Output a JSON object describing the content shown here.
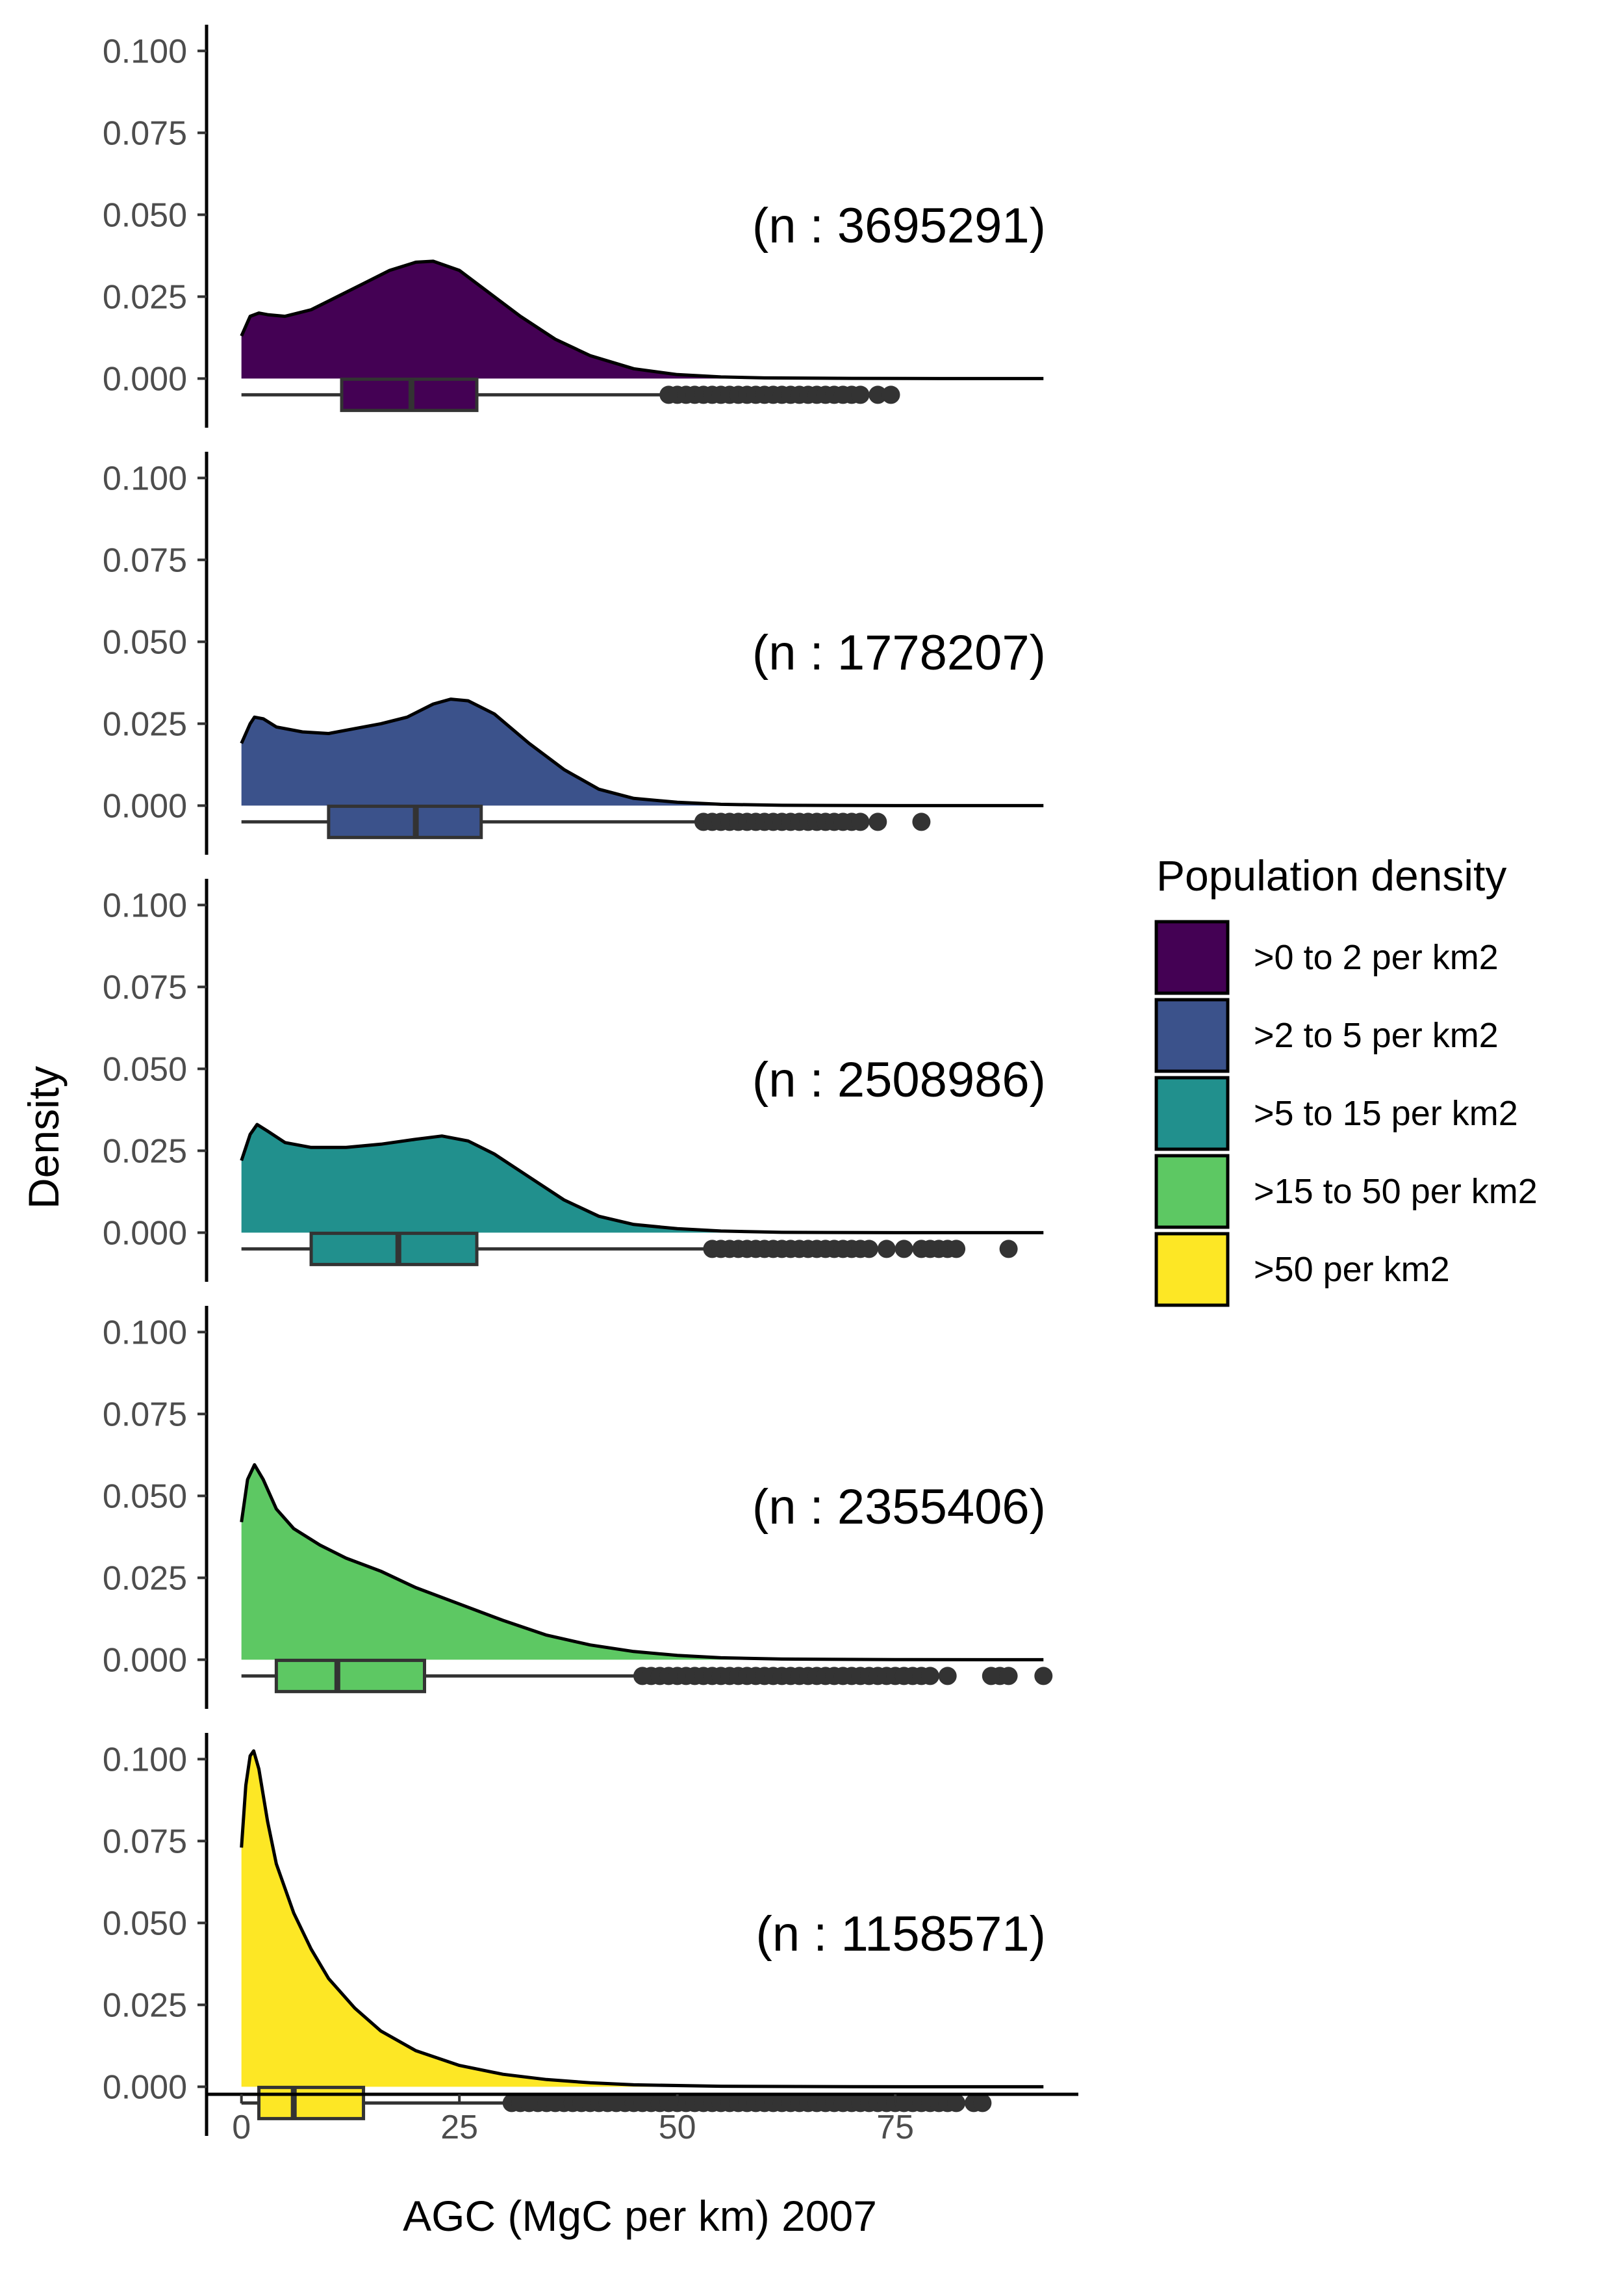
{
  "chart_data": {
    "type": "density_ridgeline",
    "xlabel": "AGC (MgC per km) 2007",
    "ylabel": "Density",
    "x_ticks": [
      0,
      25,
      50,
      75
    ],
    "xlim": [
      -4,
      96
    ],
    "y_ticks": [
      0.0,
      0.025,
      0.05,
      0.075,
      0.1
    ],
    "y_tick_labels": [
      "0.000",
      "0.025",
      "0.050",
      "0.075",
      "0.100"
    ],
    "ylim": [
      -0.015,
      0.108
    ],
    "legend": {
      "title": "Population density",
      "placement": "right"
    },
    "series": [
      {
        "name": ">0 to 2 per km2",
        "color": "#440154",
        "n_label": "(n : 3695291)",
        "density": [
          [
            0,
            0.013
          ],
          [
            1,
            0.019
          ],
          [
            2,
            0.02
          ],
          [
            3,
            0.0195
          ],
          [
            5,
            0.019
          ],
          [
            8,
            0.021
          ],
          [
            11,
            0.025
          ],
          [
            14,
            0.029
          ],
          [
            17,
            0.033
          ],
          [
            20,
            0.0355
          ],
          [
            22,
            0.0358
          ],
          [
            25,
            0.033
          ],
          [
            28,
            0.027
          ],
          [
            32,
            0.019
          ],
          [
            36,
            0.012
          ],
          [
            40,
            0.007
          ],
          [
            45,
            0.003
          ],
          [
            50,
            0.0012
          ],
          [
            55,
            0.0005
          ],
          [
            60,
            0.0002
          ],
          [
            70,
            5e-05
          ],
          [
            80,
            0.0
          ],
          [
            92,
            0.0
          ]
        ],
        "box": {
          "q1": 11.5,
          "median": 19.5,
          "q3": 27,
          "whisker_low": 0,
          "whisker_high": 49
        },
        "outliers": [
          49,
          50,
          51,
          52,
          53,
          54,
          55,
          56,
          57,
          58,
          59,
          60,
          61,
          62,
          63,
          64,
          65,
          66,
          67,
          68,
          69,
          70,
          71,
          73,
          74.5
        ]
      },
      {
        "name": ">2 to 5 per km2",
        "color": "#3b528b",
        "n_label": "(n : 1778207)",
        "density": [
          [
            0,
            0.019
          ],
          [
            1,
            0.025
          ],
          [
            1.5,
            0.027
          ],
          [
            2.5,
            0.0265
          ],
          [
            4,
            0.024
          ],
          [
            7,
            0.0225
          ],
          [
            10,
            0.022
          ],
          [
            13,
            0.0235
          ],
          [
            16,
            0.025
          ],
          [
            19,
            0.027
          ],
          [
            22,
            0.031
          ],
          [
            24,
            0.0325
          ],
          [
            26,
            0.032
          ],
          [
            29,
            0.028
          ],
          [
            33,
            0.019
          ],
          [
            37,
            0.011
          ],
          [
            41,
            0.005
          ],
          [
            45,
            0.0022
          ],
          [
            50,
            0.001
          ],
          [
            55,
            0.0004
          ],
          [
            62,
            0.0001
          ],
          [
            75,
            0.0
          ],
          [
            92,
            0.0
          ]
        ],
        "box": {
          "q1": 10,
          "median": 20,
          "q3": 27.5,
          "whisker_low": 0,
          "whisker_high": 53
        },
        "outliers": [
          53,
          54,
          55,
          56,
          57,
          58,
          59,
          60,
          61,
          62,
          63,
          64,
          65,
          66,
          67,
          68,
          69,
          70,
          71,
          73,
          78
        ]
      },
      {
        "name": ">5 to 15 per km2",
        "color": "#21908d",
        "n_label": "(n : 2508986)",
        "density": [
          [
            0,
            0.022
          ],
          [
            1,
            0.03
          ],
          [
            1.8,
            0.033
          ],
          [
            3,
            0.031
          ],
          [
            5,
            0.0275
          ],
          [
            8,
            0.026
          ],
          [
            12,
            0.026
          ],
          [
            16,
            0.027
          ],
          [
            20,
            0.0285
          ],
          [
            23,
            0.0295
          ],
          [
            26,
            0.028
          ],
          [
            29,
            0.024
          ],
          [
            33,
            0.017
          ],
          [
            37,
            0.01
          ],
          [
            41,
            0.005
          ],
          [
            45,
            0.0025
          ],
          [
            50,
            0.0012
          ],
          [
            55,
            0.0005
          ],
          [
            62,
            0.0001
          ],
          [
            75,
            0.0
          ],
          [
            92,
            0.0
          ]
        ],
        "box": {
          "q1": 8,
          "median": 18,
          "q3": 27,
          "whisker_low": 0,
          "whisker_high": 54
        },
        "outliers": [
          54,
          55,
          56,
          57,
          58,
          59,
          60,
          61,
          62,
          63,
          64,
          65,
          66,
          67,
          68,
          69,
          70,
          71,
          72,
          74,
          76,
          78,
          79,
          80,
          81,
          82,
          88
        ]
      },
      {
        "name": ">15 to 50 per km2",
        "color": "#5dc863",
        "n_label": "(n : 2355406)",
        "density": [
          [
            0,
            0.042
          ],
          [
            0.7,
            0.055
          ],
          [
            1.5,
            0.0595
          ],
          [
            2.5,
            0.055
          ],
          [
            4,
            0.046
          ],
          [
            6,
            0.04
          ],
          [
            9,
            0.035
          ],
          [
            12,
            0.031
          ],
          [
            16,
            0.027
          ],
          [
            20,
            0.022
          ],
          [
            25,
            0.017
          ],
          [
            30,
            0.012
          ],
          [
            35,
            0.0075
          ],
          [
            40,
            0.0045
          ],
          [
            45,
            0.0025
          ],
          [
            50,
            0.0013
          ],
          [
            55,
            0.0006
          ],
          [
            62,
            0.0002
          ],
          [
            75,
            3e-05
          ],
          [
            92,
            0.0
          ]
        ],
        "box": {
          "q1": 4,
          "median": 11,
          "q3": 21,
          "whisker_low": 0,
          "whisker_high": 46
        },
        "outliers": [
          46,
          47,
          48,
          49,
          50,
          51,
          52,
          53,
          54,
          55,
          56,
          57,
          58,
          59,
          60,
          61,
          62,
          63,
          64,
          65,
          66,
          67,
          68,
          69,
          70,
          71,
          72,
          73,
          74,
          75,
          76,
          77,
          78,
          79,
          81,
          86,
          87,
          88,
          92
        ]
      },
      {
        "name": ">50 per km2",
        "color": "#fde725",
        "n_label": "(n : 1158571)",
        "density": [
          [
            0,
            0.073
          ],
          [
            0.5,
            0.092
          ],
          [
            1,
            0.101
          ],
          [
            1.4,
            0.1025
          ],
          [
            2,
            0.097
          ],
          [
            3,
            0.081
          ],
          [
            4,
            0.068
          ],
          [
            6,
            0.053
          ],
          [
            8,
            0.042
          ],
          [
            10,
            0.033
          ],
          [
            13,
            0.024
          ],
          [
            16,
            0.017
          ],
          [
            20,
            0.011
          ],
          [
            25,
            0.0065
          ],
          [
            30,
            0.0038
          ],
          [
            35,
            0.0022
          ],
          [
            40,
            0.0012
          ],
          [
            45,
            0.0006
          ],
          [
            55,
            0.00015
          ],
          [
            70,
            2e-05
          ],
          [
            92,
            0.0
          ]
        ],
        "box": {
          "q1": 2,
          "median": 6,
          "q3": 14,
          "whisker_low": 0,
          "whisker_high": 31
        },
        "outliers": [
          31,
          32,
          33,
          34,
          35,
          36,
          37,
          38,
          39,
          40,
          41,
          42,
          43,
          44,
          45,
          46,
          47,
          48,
          49,
          50,
          51,
          52,
          53,
          54,
          55,
          56,
          57,
          58,
          59,
          60,
          61,
          62,
          63,
          64,
          65,
          66,
          67,
          68,
          69,
          70,
          71,
          72,
          73,
          74,
          75,
          76,
          77,
          78,
          79,
          80,
          81,
          82,
          84,
          85
        ]
      }
    ]
  }
}
